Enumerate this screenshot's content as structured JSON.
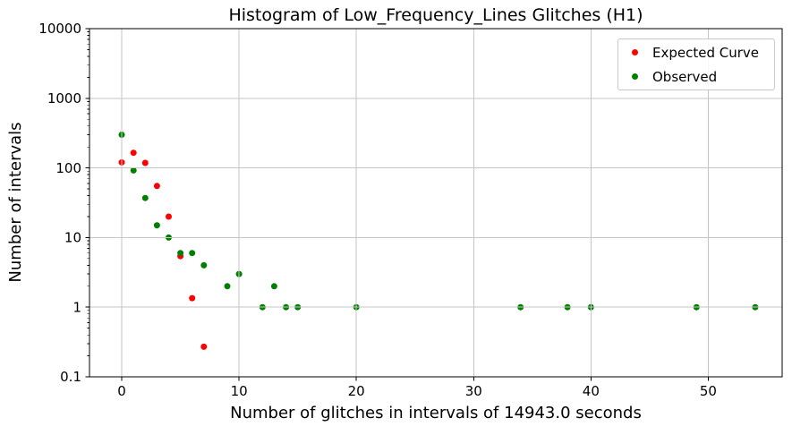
{
  "chart_data": {
    "type": "scatter",
    "title": "Histogram of Low_Frequency_Lines Glitches (H1)",
    "xlabel": "Number of glitches in intervals of 14943.0 seconds",
    "ylabel": "Number of intervals",
    "x_ticks": [
      0,
      10,
      20,
      30,
      40,
      50
    ],
    "y_ticks": [
      10000,
      1000,
      100,
      10,
      1,
      0.1
    ],
    "y_tick_labels": [
      "10000",
      "1000",
      "100",
      "10",
      "1",
      "0.1"
    ],
    "xlim": [
      -2.75,
      56.3
    ],
    "ylim": [
      0.1,
      10000
    ],
    "y_scale": "log",
    "grid": true,
    "legend": {
      "position": "upper right",
      "entries": [
        "Expected Curve",
        "Observed"
      ]
    },
    "series": [
      {
        "name": "Expected Curve",
        "color": "#ff0000",
        "marker": "dot",
        "points": [
          [
            0,
            120
          ],
          [
            1,
            165
          ],
          [
            2,
            118
          ],
          [
            3,
            55
          ],
          [
            4,
            20
          ],
          [
            5,
            5.4
          ],
          [
            6,
            1.35
          ],
          [
            7,
            0.27
          ]
        ]
      },
      {
        "name": "Observed",
        "color": "#008000",
        "marker": "dot",
        "points": [
          [
            0,
            300
          ],
          [
            1,
            92
          ],
          [
            2,
            37
          ],
          [
            3,
            15
          ],
          [
            4,
            10
          ],
          [
            5,
            6
          ],
          [
            6,
            6
          ],
          [
            7,
            4
          ],
          [
            9,
            2
          ],
          [
            10,
            3
          ],
          [
            12,
            1
          ],
          [
            13,
            2
          ],
          [
            14,
            1
          ],
          [
            15,
            1
          ],
          [
            20,
            1
          ],
          [
            34,
            1
          ],
          [
            38,
            1
          ],
          [
            40,
            1
          ],
          [
            49,
            1
          ],
          [
            54,
            1
          ]
        ]
      }
    ],
    "colors": {
      "grid": "#c6c6c6",
      "spine": "#000000",
      "background": "#ffffff"
    }
  }
}
